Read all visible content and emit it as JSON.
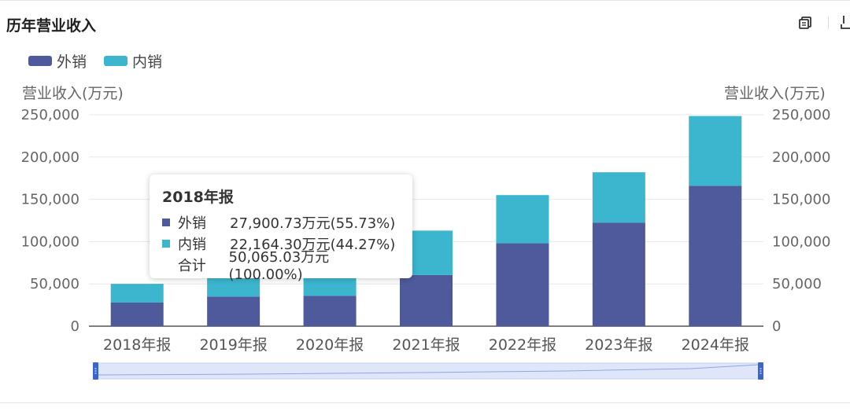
{
  "title": "历年营业收入",
  "toolbar": {
    "copy_icon": "copy-icon",
    "download_icon": "download-icon"
  },
  "legend": [
    {
      "label": "外销",
      "color": "#4e5a9b"
    },
    {
      "label": "内销",
      "color": "#3cb5ce"
    }
  ],
  "axis": {
    "left_title": "营业收入(万元)",
    "right_title": "营业收入(万元)"
  },
  "tooltip": {
    "title": "2018年报",
    "rows": [
      {
        "name": "外销",
        "value": "27,900.73万元(55.73%)"
      },
      {
        "name": "内销",
        "value": "22,164.30万元(44.27%)"
      },
      {
        "name": "合计",
        "value": "50,065.03万元(100.00%)"
      }
    ]
  },
  "chart_data": {
    "type": "bar",
    "stacked": true,
    "categories": [
      "2018年报",
      "2019年报",
      "2020年报",
      "2021年报",
      "2022年报",
      "2023年报",
      "2024年报"
    ],
    "series": [
      {
        "name": "外销",
        "color": "#4e5a9b",
        "values": [
          27900.73,
          35000,
          36000,
          60500,
          98000,
          122500,
          166000
        ]
      },
      {
        "name": "内销",
        "color": "#3cb5ce",
        "values": [
          22164.3,
          23000,
          22000,
          52500,
          57000,
          59500,
          82500
        ]
      }
    ],
    "ylim": [
      0,
      250000
    ],
    "yticks": [
      "0",
      "50,000",
      "100,000",
      "150,000",
      "200,000",
      "250,000"
    ],
    "ylabel": "营业收入(万元)",
    "ylabel_right": "营业收入(万元)",
    "grid": true,
    "legend_position": "top-left"
  }
}
